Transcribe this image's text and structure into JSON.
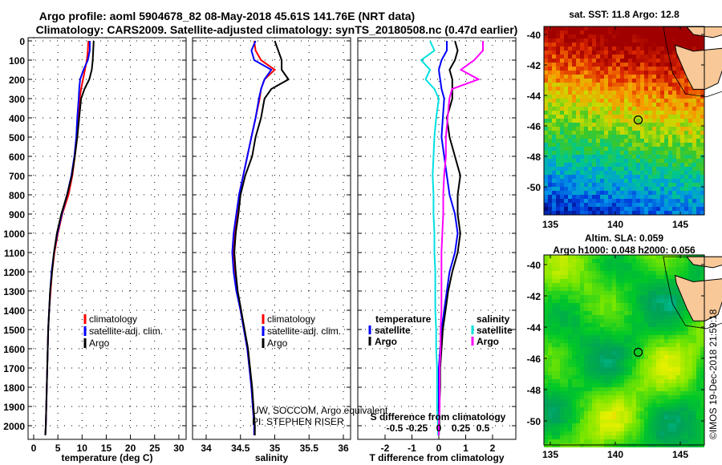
{
  "title_line1": "Argo profile: aoml 5904678_82 08-May-2018 45.61S 141.76E (NRT data)",
  "title_line2": "Climatology: CARS2009. Satellite-adjusted climatology: synTS_20180508.nc (0.47d earlier)",
  "colors": {
    "argo": "#000000",
    "climatology": "#ff0000",
    "satellite": "#0000ff",
    "sal_satellite": "#00e0e0",
    "sal_argo": "#ff00ff",
    "land": "#f8c898"
  },
  "credit_line1": "UW, SOCCOM, Argo equivalent",
  "credit_line2": "PI: STEPHEN RISER",
  "watermark": "©IMOS 19-Dec-2018 21:59:18",
  "chart_data": [
    {
      "type": "line",
      "name": "temperature",
      "xlabel": "temperature (deg C)",
      "ylabel": "depth",
      "xlim": [
        -2,
        32
      ],
      "ylim": [
        2070,
        0
      ],
      "xticks": [
        "0",
        "5",
        "10",
        "15",
        "20",
        "25",
        "30"
      ],
      "xtick_values": [
        0,
        5,
        10,
        15,
        20,
        25,
        30
      ],
      "yticks": [
        "0",
        "100",
        "200",
        "300",
        "400",
        "500",
        "600",
        "700",
        "800",
        "900",
        "1000",
        "1100",
        "1200",
        "1300",
        "1400",
        "1500",
        "1600",
        "1700",
        "1800",
        "1900",
        "2000"
      ],
      "legend": [
        "climatology",
        "satellite-adj. clim.",
        "Argo"
      ],
      "depth": [
        0,
        50,
        100,
        150,
        200,
        250,
        300,
        400,
        500,
        600,
        700,
        800,
        900,
        1000,
        1100,
        1200,
        1300,
        1400,
        1500,
        1600,
        1700,
        1800,
        1900,
        2000,
        2050
      ],
      "series": [
        {
          "name": "climatology",
          "values": [
            11.3,
            11.2,
            11,
            10.6,
            10.2,
            9.8,
            9.5,
            9.3,
            9.0,
            8.5,
            8.0,
            7.2,
            5.9,
            5.0,
            4.3,
            3.8,
            3.5,
            3.2,
            3.0,
            2.9,
            2.8,
            2.7,
            2.6,
            2.5,
            2.4
          ]
        },
        {
          "name": "satellite-adj. clim.",
          "values": [
            11.6,
            11.6,
            11.2,
            10.3,
            9.6,
            9.4,
            9.3,
            9.0,
            8.8,
            8.4,
            7.8,
            6.9,
            5.8,
            4.9,
            4.2,
            3.7,
            3.4,
            3.2,
            3.0,
            2.9,
            2.8,
            2.7,
            2.6,
            2.5,
            2.4
          ]
        },
        {
          "name": "Argo",
          "values": [
            12.4,
            12.3,
            12.2,
            12,
            11.5,
            10.5,
            9.8,
            9.4,
            9.0,
            8.5,
            7.9,
            6.9,
            5.7,
            4.8,
            4.2,
            3.8,
            3.4,
            3.2,
            3.0,
            2.9,
            2.8,
            2.7,
            2.6,
            2.5,
            2.4
          ]
        }
      ]
    },
    {
      "type": "line",
      "name": "salinity",
      "xlabel": "salinity",
      "xlim": [
        33.8,
        36.1
      ],
      "ylim": [
        2070,
        0
      ],
      "xticks": [
        "34",
        "34.5",
        "35",
        "35.5",
        "36"
      ],
      "xtick_values": [
        34,
        34.5,
        35,
        35.5,
        36
      ],
      "legend": [
        "climatology",
        "satellite-adj. clim.",
        "Argo"
      ],
      "depth": [
        0,
        50,
        100,
        150,
        200,
        250,
        300,
        400,
        500,
        600,
        700,
        800,
        900,
        1000,
        1100,
        1200,
        1300,
        1400,
        1500,
        1600,
        1700,
        1800,
        1900,
        2000,
        2050
      ],
      "series": [
        {
          "name": "climatology",
          "values": [
            34.7,
            34.72,
            34.8,
            35.0,
            34.85,
            34.8,
            34.78,
            34.72,
            34.66,
            34.6,
            34.54,
            34.48,
            34.45,
            34.42,
            34.4,
            34.42,
            34.45,
            34.5,
            34.55,
            34.6,
            34.63,
            34.66,
            34.68,
            34.7,
            34.7
          ]
        },
        {
          "name": "satellite-adj. clim.",
          "values": [
            34.72,
            34.66,
            34.7,
            34.95,
            34.85,
            34.8,
            34.77,
            34.72,
            34.66,
            34.6,
            34.54,
            34.48,
            34.44,
            34.4,
            34.38,
            34.4,
            34.44,
            34.5,
            34.55,
            34.6,
            34.63,
            34.66,
            34.68,
            34.7,
            34.7
          ]
        },
        {
          "name": "Argo",
          "values": [
            35.0,
            35.05,
            35.1,
            35.1,
            35.2,
            34.95,
            34.85,
            34.8,
            34.72,
            34.67,
            34.57,
            34.5,
            34.47,
            34.43,
            34.41,
            34.43,
            34.46,
            34.51,
            34.56,
            34.61,
            34.64,
            34.67,
            34.69,
            34.71,
            34.71
          ]
        }
      ]
    },
    {
      "type": "line",
      "name": "difference",
      "xlabel": "T difference from climatology",
      "x2label": "S difference from climatology",
      "xlim": [
        -3,
        3
      ],
      "ylim": [
        2070,
        0
      ],
      "xticks": [
        "-2",
        "-1",
        "0",
        "1",
        "2"
      ],
      "xtick_values": [
        -2,
        -1,
        0,
        1,
        2
      ],
      "x2ticks": [
        "-0.5",
        "-0.25",
        "0",
        "0.25",
        "0.5"
      ],
      "x2tick_values": [
        -0.5,
        -0.25,
        0,
        0.25,
        0.5
      ],
      "legend_temperature": {
        "heading": "temperature",
        "items": [
          "satellite",
          "Argo"
        ]
      },
      "legend_salinity": {
        "heading": "salinity",
        "items": [
          "satellite",
          "Argo"
        ]
      },
      "depth": [
        0,
        50,
        100,
        150,
        200,
        250,
        300,
        400,
        500,
        600,
        700,
        800,
        900,
        1000,
        1100,
        1200,
        1300,
        1400,
        1500,
        1600,
        1700,
        1800,
        1900,
        2000,
        2050
      ],
      "series": [
        {
          "name": "T satellite",
          "values": [
            0.3,
            0.3,
            0.1,
            0,
            0.05,
            0.1,
            0.2,
            0.15,
            0.1,
            0.2,
            0.3,
            0.4,
            0.6,
            0.7,
            0.6,
            0.4,
            0.3,
            0.2,
            0.1,
            0.05,
            0,
            0,
            0,
            0,
            0
          ]
        },
        {
          "name": "T Argo",
          "values": [
            0.6,
            0.7,
            0.6,
            0.4,
            0.5,
            0.5,
            0.5,
            0.3,
            0.4,
            0.6,
            0.8,
            0.7,
            0.7,
            0.8,
            0.7,
            0.5,
            0.35,
            0.25,
            0.15,
            0.1,
            0.05,
            0.05,
            0.02,
            0.02,
            0
          ]
        },
        {
          "name": "S satellite",
          "values": [
            -0.1,
            -0.05,
            -0.2,
            -0.1,
            -0.15,
            -0.05,
            0,
            -0.03,
            -0.05,
            -0.06,
            -0.07,
            -0.06,
            -0.06,
            -0.05,
            -0.05,
            -0.04,
            -0.04,
            -0.04,
            -0.03,
            -0.03,
            -0.02,
            -0.02,
            -0.02,
            -0.01,
            -0.01
          ]
        },
        {
          "name": "S Argo",
          "values": [
            0.5,
            0.5,
            0.4,
            0.25,
            0.45,
            0.15,
            0.12,
            0.1,
            0.08,
            0.08,
            0.06,
            0.05,
            0.05,
            0.04,
            0.03,
            0.03,
            0.03,
            0.03,
            0.02,
            0.02,
            0.01,
            0.01,
            0.01,
            0.0,
            0.0
          ]
        }
      ]
    },
    {
      "type": "heatmap",
      "name": "sst-map",
      "title": "sat. SST: 11.8 Argo: 12.8",
      "xticks": [
        "135",
        "140",
        "145"
      ],
      "xtick_values": [
        135,
        140,
        145
      ],
      "yticks": [
        "-40",
        "-42",
        "-44",
        "-46",
        "-48",
        "-50"
      ],
      "ytick_values": [
        -40,
        -42,
        -44,
        -46,
        -48,
        -50
      ],
      "xlim": [
        134.5,
        149.2
      ],
      "ylim": [
        -51.6,
        -39.5
      ],
      "marker": [
        141.76,
        -45.61
      ]
    },
    {
      "type": "heatmap",
      "name": "sla-map",
      "title": "Altim. SLA: 0.059",
      "subtitle": "Argo h1000: 0.048 h2000: 0.056",
      "xticks": [
        "135",
        "140",
        "145"
      ],
      "xtick_values": [
        135,
        140,
        145
      ],
      "yticks": [
        "-40",
        "-42",
        "-44",
        "-46",
        "-48",
        "-50"
      ],
      "ytick_values": [
        -40,
        -42,
        -44,
        -46,
        -48,
        -50
      ],
      "xlim": [
        134.5,
        149.2
      ],
      "ylim": [
        -51.6,
        -39.5
      ],
      "marker": [
        141.76,
        -45.61
      ]
    }
  ]
}
